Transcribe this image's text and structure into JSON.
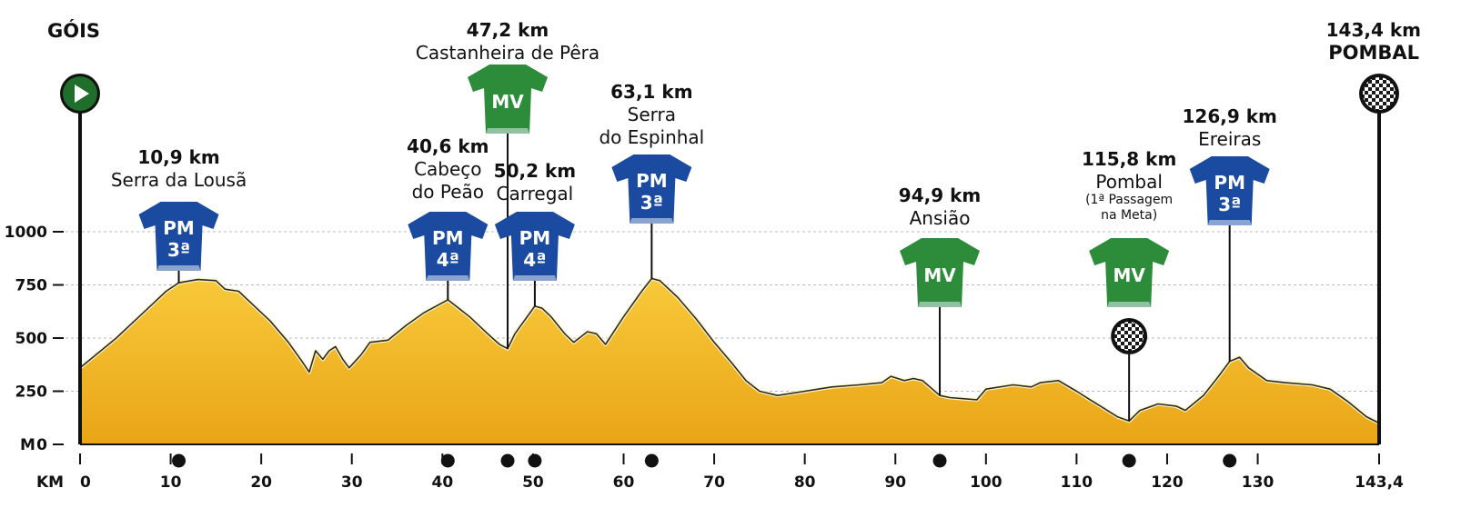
{
  "chart_data": {
    "type": "area",
    "x_unit": "KM",
    "y_unit": "M",
    "xlim": [
      0,
      143.4
    ],
    "ylim": [
      0,
      1000
    ],
    "x_ticks": [
      0,
      10,
      20,
      30,
      40,
      50,
      60,
      70,
      80,
      90,
      100,
      110,
      120,
      130,
      143.4
    ],
    "x_tick_labels": [
      "0",
      "10",
      "20",
      "30",
      "40",
      "50",
      "60",
      "70",
      "80",
      "90",
      "100",
      "110",
      "120",
      "130",
      "143,4"
    ],
    "y_ticks": [
      0,
      250,
      500,
      750,
      1000
    ],
    "y_tick_labels": [
      "0",
      "250",
      "500",
      "750",
      "1000"
    ],
    "y_axis_unit_label": "M",
    "x_axis_unit_label": "KM",
    "grid": "horizontal dashed",
    "colors": {
      "fill": "#f2b21a",
      "fill_light": "#f8c93a",
      "outline": "#2a2a2a",
      "pm": "#1a4ba0",
      "mv": "#2c8c3a",
      "start": "#1f6e2c"
    },
    "profile": [
      [
        0,
        360
      ],
      [
        2,
        430
      ],
      [
        4,
        500
      ],
      [
        6,
        580
      ],
      [
        8,
        660
      ],
      [
        9.5,
        720
      ],
      [
        10.9,
        760
      ],
      [
        13,
        775
      ],
      [
        15,
        770
      ],
      [
        16,
        730
      ],
      [
        17.5,
        720
      ],
      [
        19,
        660
      ],
      [
        21,
        580
      ],
      [
        23,
        480
      ],
      [
        24.5,
        390
      ],
      [
        25.3,
        340
      ],
      [
        26,
        440
      ],
      [
        26.8,
        400
      ],
      [
        27.5,
        440
      ],
      [
        28.2,
        460
      ],
      [
        29,
        400
      ],
      [
        29.7,
        360
      ],
      [
        31,
        420
      ],
      [
        32,
        480
      ],
      [
        34,
        490
      ],
      [
        36,
        560
      ],
      [
        38,
        620
      ],
      [
        40.6,
        680
      ],
      [
        41.5,
        650
      ],
      [
        43,
        600
      ],
      [
        45,
        520
      ],
      [
        46.3,
        470
      ],
      [
        47.2,
        450
      ],
      [
        48,
        520
      ],
      [
        50.2,
        650
      ],
      [
        51,
        640
      ],
      [
        52,
        600
      ],
      [
        53.5,
        520
      ],
      [
        54.5,
        480
      ],
      [
        56,
        530
      ],
      [
        57,
        520
      ],
      [
        58,
        470
      ],
      [
        60,
        600
      ],
      [
        62,
        720
      ],
      [
        63.1,
        780
      ],
      [
        64,
        770
      ],
      [
        66,
        690
      ],
      [
        68,
        590
      ],
      [
        70,
        480
      ],
      [
        72,
        380
      ],
      [
        73.5,
        300
      ],
      [
        75,
        250
      ],
      [
        77,
        230
      ],
      [
        80,
        250
      ],
      [
        83,
        270
      ],
      [
        86,
        280
      ],
      [
        88.5,
        290
      ],
      [
        89.5,
        320
      ],
      [
        91,
        300
      ],
      [
        92,
        310
      ],
      [
        93,
        300
      ],
      [
        94.9,
        230
      ],
      [
        96,
        220
      ],
      [
        99,
        210
      ],
      [
        100,
        260
      ],
      [
        103,
        280
      ],
      [
        105,
        270
      ],
      [
        106,
        290
      ],
      [
        108,
        300
      ],
      [
        110,
        250
      ],
      [
        111.5,
        210
      ],
      [
        113,
        170
      ],
      [
        114.5,
        130
      ],
      [
        115.8,
        110
      ],
      [
        117,
        160
      ],
      [
        119,
        190
      ],
      [
        121,
        180
      ],
      [
        122,
        160
      ],
      [
        124,
        230
      ],
      [
        125.5,
        310
      ],
      [
        126.9,
        390
      ],
      [
        128,
        410
      ],
      [
        129,
        360
      ],
      [
        131,
        300
      ],
      [
        133,
        290
      ],
      [
        136,
        280
      ],
      [
        138,
        260
      ],
      [
        140,
        200
      ],
      [
        142,
        130
      ],
      [
        143.4,
        100
      ]
    ],
    "start": {
      "name": "GÓIS",
      "km": 0
    },
    "finish": {
      "km_label": "143,4 km",
      "name": "POMBAL",
      "km": 143.4
    },
    "annotations": [
      {
        "km": 10.9,
        "km_label": "10,9 km",
        "name_lines": [
          "Serra da Lousã"
        ],
        "kind": "PM",
        "category": "3ª",
        "sprint": false
      },
      {
        "km": 40.6,
        "km_label": "40,6 km",
        "name_lines": [
          "Cabeço",
          "do Peão"
        ],
        "kind": "PM",
        "category": "4ª",
        "sprint": false
      },
      {
        "km": 47.2,
        "km_label": "47,2 km",
        "name_lines": [
          "Castanheira de Pêra"
        ],
        "kind": "MV",
        "category": "",
        "sprint": false
      },
      {
        "km": 50.2,
        "km_label": "50,2 km",
        "name_lines": [
          "Carregal"
        ],
        "kind": "PM",
        "category": "4ª",
        "sprint": false
      },
      {
        "km": 63.1,
        "km_label": "63,1 km",
        "name_lines": [
          "Serra",
          "do Espinhal"
        ],
        "kind": "PM",
        "category": "3ª",
        "sprint": false
      },
      {
        "km": 94.9,
        "km_label": "94,9 km",
        "name_lines": [
          "Ansião"
        ],
        "kind": "MV",
        "category": "",
        "sprint": false
      },
      {
        "km": 115.8,
        "km_label": "115,8 km",
        "name_lines": [
          "Pombal"
        ],
        "sub_lines": [
          "(1ª Passagem",
          "na Meta)"
        ],
        "kind": "MV",
        "category": "",
        "sprint": true
      },
      {
        "km": 126.9,
        "km_label": "126,9 km",
        "name_lines": [
          "Ereiras"
        ],
        "kind": "PM",
        "category": "3ª",
        "sprint": false
      }
    ]
  }
}
